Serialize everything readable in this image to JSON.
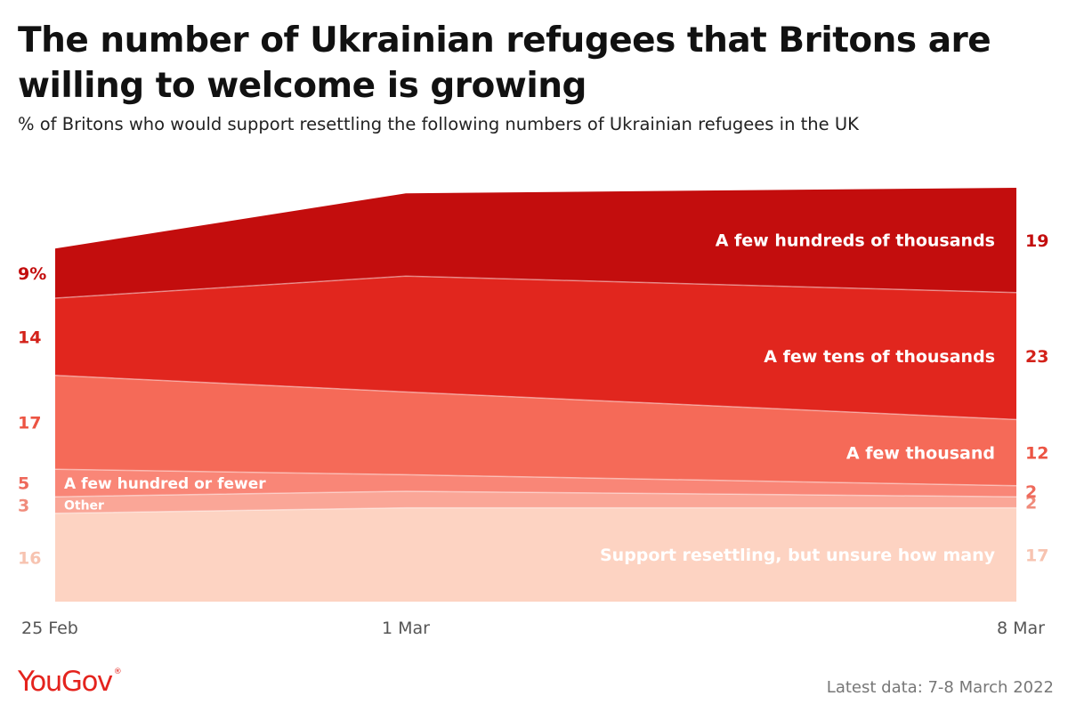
{
  "title": "The number of Ukrainian refugees that Britons are willing to welcome is growing",
  "subtitle": "% of Britons who would support resettling the following numbers of Ukrainian refugees in the UK",
  "logo": "YouGov",
  "logo_mark": "®",
  "source": "Latest data: 7-8 March 2022",
  "chart_data": {
    "type": "area",
    "stacked": true,
    "x": [
      "25 Feb",
      "1 Mar",
      "8 Mar"
    ],
    "ylim": [
      0,
      78
    ],
    "grid": false,
    "legend": "inline labels on bands",
    "series": [
      {
        "name": "Support resettling, but unsure how many",
        "values": [
          16,
          17,
          17
        ],
        "color": "#fdd3c2",
        "value_color": "#f7c3b0",
        "left_label": "16",
        "right_label": "17"
      },
      {
        "name": "Other",
        "values": [
          3,
          3,
          2
        ],
        "color": "#faa697",
        "value_color": "#f08c7c",
        "left_label": "3",
        "right_label": "2"
      },
      {
        "name": "A few hundred or fewer",
        "values": [
          5,
          3,
          2
        ],
        "color": "#f98677",
        "value_color": "#ee6a5c",
        "left_label": "5",
        "right_label": "2"
      },
      {
        "name": "A few thousand",
        "values": [
          17,
          15,
          12
        ],
        "color": "#f56a58",
        "value_color": "#ec5443",
        "left_label": "17",
        "right_label": "12"
      },
      {
        "name": "A few tens of thousands",
        "values": [
          14,
          21,
          23
        ],
        "color": "#e1261e",
        "value_color": "#d3221a",
        "left_label": "14",
        "right_label": "23"
      },
      {
        "name": "A few hundreds of thousands",
        "values": [
          9,
          15,
          19
        ],
        "color": "#c30d0d",
        "value_color": "#c30d0d",
        "left_label": "9%",
        "right_label": "19"
      }
    ]
  }
}
